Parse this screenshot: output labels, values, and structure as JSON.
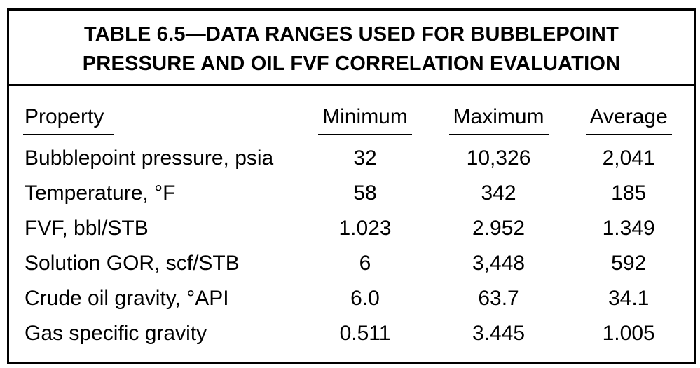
{
  "table": {
    "title_line1": "TABLE 6.5—DATA RANGES USED FOR BUBBLEPOINT",
    "title_line2": "PRESSURE AND OIL FVF CORRELATION EVALUATION",
    "columns": [
      "Property",
      "Minimum",
      "Maximum",
      "Average"
    ],
    "rows": [
      {
        "property": "Bubblepoint pressure, psia",
        "minimum": "32",
        "maximum": "10,326",
        "average": "2,041"
      },
      {
        "property": "Temperature, °F",
        "minimum": "58",
        "maximum": "342",
        "average": "185"
      },
      {
        "property": "FVF, bbl/STB",
        "minimum": "1.023",
        "maximum": "2.952",
        "average": "1.349"
      },
      {
        "property": "Solution GOR, scf/STB",
        "minimum": "6",
        "maximum": "3,448",
        "average": "592"
      },
      {
        "property": "Crude oil gravity, °API",
        "minimum": "6.0",
        "maximum": "63.7",
        "average": "34.1"
      },
      {
        "property": "Gas specific gravity",
        "minimum": "0.511",
        "maximum": "3.445",
        "average": "1.005"
      }
    ],
    "colors": {
      "text": "#000000",
      "background": "#ffffff",
      "border": "#000000"
    }
  },
  "chart_data": {
    "type": "table",
    "title": "TABLE 6.5—DATA RANGES USED FOR BUBBLEPOINT PRESSURE AND OIL FVF CORRELATION EVALUATION",
    "columns": [
      "Property",
      "Minimum",
      "Maximum",
      "Average"
    ],
    "rows": [
      [
        "Bubblepoint pressure, psia",
        "32",
        "10,326",
        "2,041"
      ],
      [
        "Temperature, °F",
        "58",
        "342",
        "185"
      ],
      [
        "FVF, bbl/STB",
        "1.023",
        "2.952",
        "1.349"
      ],
      [
        "Solution GOR, scf/STB",
        "6",
        "3,448",
        "592"
      ],
      [
        "Crude oil gravity, °API",
        "6.0",
        "63.7",
        "34.1"
      ],
      [
        "Gas specific gravity",
        "0.511",
        "3.445",
        "1.005"
      ]
    ]
  }
}
